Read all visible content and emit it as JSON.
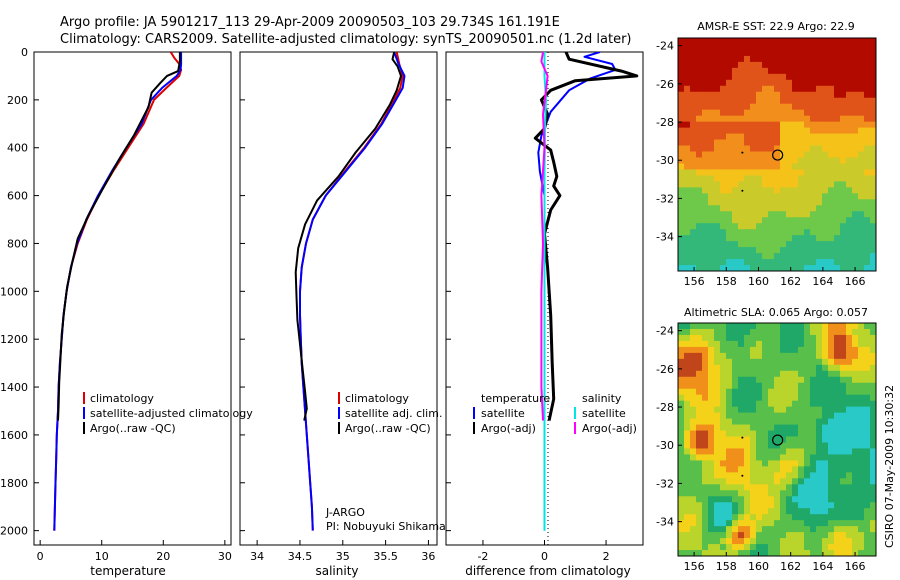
{
  "header": {
    "line1": "Argo profile: JA 5901217_113 29-Apr-2009 20090503_103 29.734S 161.191E",
    "line2": "Climatology: CARS2009. Satellite-adjusted climatology: synTS_20090501.nc (1.2d later)"
  },
  "footer_stamp": "CSIRO 07-May-2009 10:30:32",
  "colors": {
    "climatology": "#dd0000",
    "satellite": "#0000ff",
    "argo": "#000000",
    "salinity_satellite": "#00e5e5",
    "salinity_argo": "#ff00ff"
  },
  "chart_data": [
    {
      "type": "line",
      "panel": "temperature",
      "xlabel": "temperature",
      "xlim": [
        -1,
        31
      ],
      "xticks": [
        0,
        10,
        20,
        30
      ],
      "ylim": [
        2060,
        0
      ],
      "yticks": [
        0,
        200,
        400,
        600,
        800,
        1000,
        1200,
        1400,
        1600,
        1800,
        2000
      ],
      "legend": [
        "climatology",
        "satellite-adjusted climatology",
        "Argo(..raw -QC)"
      ],
      "series": [
        {
          "name": "climatology",
          "color": "#dd0000",
          "width": 2,
          "points": [
            [
              21.2,
              0
            ],
            [
              21.8,
              25
            ],
            [
              22.6,
              50
            ],
            [
              22.9,
              75
            ],
            [
              22.6,
              100
            ],
            [
              20.5,
              150
            ],
            [
              18.5,
              200
            ],
            [
              16.8,
              300
            ],
            [
              14.3,
              400
            ],
            [
              11.8,
              500
            ],
            [
              9.5,
              600
            ],
            [
              7.6,
              700
            ],
            [
              6.1,
              800
            ],
            [
              5.0,
              900
            ],
            [
              4.3,
              1000
            ],
            [
              3.8,
              1100
            ],
            [
              3.5,
              1200
            ],
            [
              3.2,
              1300
            ],
            [
              3.0,
              1400
            ],
            [
              2.9,
              1500
            ],
            [
              2.7,
              1600
            ],
            [
              2.6,
              1700
            ],
            [
              2.5,
              1800
            ],
            [
              2.4,
              1900
            ],
            [
              2.3,
              2000
            ]
          ]
        },
        {
          "name": "satellite-adjusted climatology",
          "color": "#0000ff",
          "width": 2,
          "points": [
            [
              22.9,
              0
            ],
            [
              22.9,
              25
            ],
            [
              22.9,
              50
            ],
            [
              22.8,
              75
            ],
            [
              22.2,
              100
            ],
            [
              19.8,
              150
            ],
            [
              18.0,
              200
            ],
            [
              16.5,
              300
            ],
            [
              14.0,
              400
            ],
            [
              11.6,
              500
            ],
            [
              9.4,
              600
            ],
            [
              7.5,
              700
            ],
            [
              6.0,
              800
            ],
            [
              5.0,
              900
            ],
            [
              4.3,
              1000
            ],
            [
              3.8,
              1100
            ],
            [
              3.5,
              1200
            ],
            [
              3.2,
              1300
            ],
            [
              3.0,
              1400
            ],
            [
              2.9,
              1500
            ],
            [
              2.7,
              1600
            ],
            [
              2.6,
              1700
            ],
            [
              2.5,
              1800
            ],
            [
              2.4,
              1900
            ],
            [
              2.3,
              2000
            ]
          ]
        },
        {
          "name": "Argo(..raw -QC)",
          "color": "#000000",
          "width": 2,
          "points": [
            [
              22.7,
              0
            ],
            [
              22.7,
              40
            ],
            [
              22.4,
              80
            ],
            [
              20.6,
              100
            ],
            [
              19.5,
              130
            ],
            [
              18.1,
              170
            ],
            [
              17.6,
              230
            ],
            [
              15.2,
              350
            ],
            [
              12.8,
              450
            ],
            [
              10.0,
              580
            ],
            [
              7.9,
              680
            ],
            [
              6.1,
              780
            ],
            [
              5.2,
              880
            ],
            [
              4.4,
              980
            ],
            [
              3.9,
              1080
            ],
            [
              3.5,
              1180
            ],
            [
              3.3,
              1280
            ],
            [
              3.1,
              1380
            ],
            [
              3.0,
              1480
            ],
            [
              2.9,
              1540
            ]
          ]
        }
      ]
    },
    {
      "type": "line",
      "panel": "salinity",
      "xlabel": "salinity",
      "xlim": [
        33.8,
        36.1
      ],
      "xticks": [
        34,
        34.5,
        35,
        35.5,
        36
      ],
      "ylim": [
        2060,
        0
      ],
      "legend": [
        "climatology",
        "satellite adj. clim.",
        "Argo(..raw -QC)"
      ],
      "annotation": [
        "J-ARGO",
        "PI: Nobuyuki Shikama"
      ],
      "series": [
        {
          "name": "climatology",
          "color": "#dd0000",
          "width": 2,
          "points": [
            [
              35.63,
              0
            ],
            [
              35.66,
              50
            ],
            [
              35.7,
              100
            ],
            [
              35.67,
              150
            ],
            [
              35.6,
              200
            ],
            [
              35.45,
              300
            ],
            [
              35.25,
              400
            ],
            [
              35.02,
              500
            ],
            [
              34.8,
              600
            ],
            [
              34.65,
              700
            ],
            [
              34.57,
              800
            ],
            [
              34.52,
              900
            ],
            [
              34.5,
              1000
            ],
            [
              34.5,
              1100
            ],
            [
              34.51,
              1200
            ],
            [
              34.52,
              1300
            ],
            [
              34.54,
              1400
            ],
            [
              34.56,
              1500
            ],
            [
              34.58,
              1600
            ],
            [
              34.6,
              1700
            ],
            [
              34.62,
              1800
            ],
            [
              34.64,
              1900
            ],
            [
              34.65,
              2000
            ]
          ]
        },
        {
          "name": "satellite adj. clim.",
          "color": "#0000ff",
          "width": 2,
          "points": [
            [
              35.6,
              0
            ],
            [
              35.65,
              50
            ],
            [
              35.72,
              100
            ],
            [
              35.7,
              150
            ],
            [
              35.62,
              200
            ],
            [
              35.46,
              300
            ],
            [
              35.26,
              400
            ],
            [
              35.03,
              500
            ],
            [
              34.8,
              600
            ],
            [
              34.65,
              700
            ],
            [
              34.57,
              800
            ],
            [
              34.52,
              900
            ],
            [
              34.5,
              1000
            ],
            [
              34.5,
              1100
            ],
            [
              34.51,
              1200
            ],
            [
              34.52,
              1300
            ],
            [
              34.54,
              1400
            ],
            [
              34.56,
              1500
            ],
            [
              34.58,
              1600
            ],
            [
              34.6,
              1700
            ],
            [
              34.62,
              1800
            ],
            [
              34.64,
              1900
            ],
            [
              34.65,
              2000
            ]
          ]
        },
        {
          "name": "Argo(..raw -QC)",
          "color": "#000000",
          "width": 2,
          "points": [
            [
              35.6,
              0
            ],
            [
              35.58,
              30
            ],
            [
              35.64,
              60
            ],
            [
              35.68,
              100
            ],
            [
              35.63,
              160
            ],
            [
              35.55,
              220
            ],
            [
              35.38,
              320
            ],
            [
              35.15,
              420
            ],
            [
              34.95,
              520
            ],
            [
              34.7,
              620
            ],
            [
              34.56,
              720
            ],
            [
              34.48,
              820
            ],
            [
              34.45,
              920
            ],
            [
              34.46,
              1020
            ],
            [
              34.47,
              1120
            ],
            [
              34.5,
              1220
            ],
            [
              34.53,
              1320
            ],
            [
              34.56,
              1420
            ],
            [
              34.58,
              1490
            ],
            [
              34.55,
              1540
            ]
          ]
        }
      ]
    },
    {
      "type": "line",
      "panel": "difference",
      "xlabel": "difference from climatology",
      "xlim": [
        -3.2,
        3.2
      ],
      "xticks": [
        -2,
        0,
        2
      ],
      "ylim": [
        2060,
        0
      ],
      "legend": {
        "temperature_header": "temperature",
        "salinity_header": "salinity",
        "satellite": "satellite",
        "argo": "Argo(-adj)"
      },
      "series": [
        {
          "name": "temperature satellite",
          "color": "#0000ff",
          "width": 2,
          "points": [
            [
              1.8,
              0
            ],
            [
              1.3,
              20
            ],
            [
              2.2,
              50
            ],
            [
              2.3,
              75
            ],
            [
              1.5,
              110
            ],
            [
              0.8,
              160
            ],
            [
              0.2,
              250
            ],
            [
              -0.1,
              350
            ],
            [
              -0.2,
              420
            ],
            [
              -0.15,
              500
            ],
            [
              0,
              600
            ],
            [
              0,
              700
            ],
            [
              0,
              800
            ],
            [
              0,
              1000
            ],
            [
              0,
              1200
            ],
            [
              0,
              1500
            ],
            [
              0,
              1800
            ],
            [
              0,
              2000
            ]
          ]
        },
        {
          "name": "temperature Argo(-adj)",
          "color": "#000000",
          "width": 3,
          "points": [
            [
              0.7,
              0
            ],
            [
              0.8,
              30
            ],
            [
              2.5,
              80
            ],
            [
              3.0,
              100
            ],
            [
              1.0,
              120
            ],
            [
              0.2,
              160
            ],
            [
              -0.1,
              200
            ],
            [
              0.1,
              260
            ],
            [
              0,
              320
            ],
            [
              -0.3,
              360
            ],
            [
              0.2,
              410
            ],
            [
              0.3,
              460
            ],
            [
              0.4,
              520
            ],
            [
              0.3,
              560
            ],
            [
              0.5,
              600
            ],
            [
              0.2,
              660
            ],
            [
              0,
              760
            ],
            [
              0.1,
              900
            ],
            [
              0.2,
              1100
            ],
            [
              0.25,
              1300
            ],
            [
              0.3,
              1450
            ],
            [
              0.15,
              1540
            ]
          ]
        },
        {
          "name": "salinity satellite",
          "color": "#00e5e5",
          "width": 2,
          "points": [
            [
              0,
              0
            ],
            [
              0,
              100
            ],
            [
              0.05,
              200
            ],
            [
              0.02,
              300
            ],
            [
              0,
              500
            ],
            [
              0,
              700
            ],
            [
              0,
              1000
            ],
            [
              0,
              1300
            ],
            [
              0,
              1600
            ],
            [
              0,
              2000
            ]
          ]
        },
        {
          "name": "salinity Argo(-adj)",
          "color": "#ff00ff",
          "width": 2,
          "points": [
            [
              -0.05,
              0
            ],
            [
              -0.1,
              40
            ],
            [
              0.1,
              100
            ],
            [
              0.05,
              160
            ],
            [
              -0.05,
              260
            ],
            [
              0,
              400
            ],
            [
              -0.1,
              600
            ],
            [
              -0.05,
              800
            ],
            [
              -0.1,
              1000
            ],
            [
              -0.1,
              1200
            ],
            [
              -0.1,
              1400
            ],
            [
              -0.05,
              1540
            ]
          ]
        }
      ]
    },
    {
      "type": "heatmap",
      "panel": "sst_map",
      "title": "AMSR-E SST: 22.9 Argo: 22.9",
      "xlim": [
        155,
        167.3
      ],
      "xticks": [
        156,
        158,
        160,
        162,
        164,
        166
      ],
      "ylim": [
        -35.8,
        -23.6
      ],
      "yticks": [
        -24,
        -26,
        -28,
        -30,
        -32,
        -34
      ],
      "profile_location": [
        161.19,
        -29.73
      ],
      "palette": [
        "#b30a00",
        "#e0541a",
        "#f28f1c",
        "#f5c21a",
        "#caca2a",
        "#6ec94a",
        "#33b87a",
        "#28c9c6"
      ]
    },
    {
      "type": "heatmap",
      "panel": "sla_map",
      "title": "Altimetric SLA: 0.065 Argo: 0.057",
      "xlim": [
        155,
        167.3
      ],
      "xticks": [
        156,
        158,
        160,
        162,
        164,
        166
      ],
      "ylim": [
        -35.8,
        -23.6
      ],
      "yticks": [
        -24,
        -26,
        -28,
        -30,
        -32,
        -34
      ],
      "profile_location": [
        161.19,
        -29.73
      ],
      "palette": [
        "#7a1a00",
        "#c0451a",
        "#f0901a",
        "#f5d21a",
        "#b9d42a",
        "#58c04a",
        "#20a868",
        "#28c9c6"
      ]
    }
  ]
}
